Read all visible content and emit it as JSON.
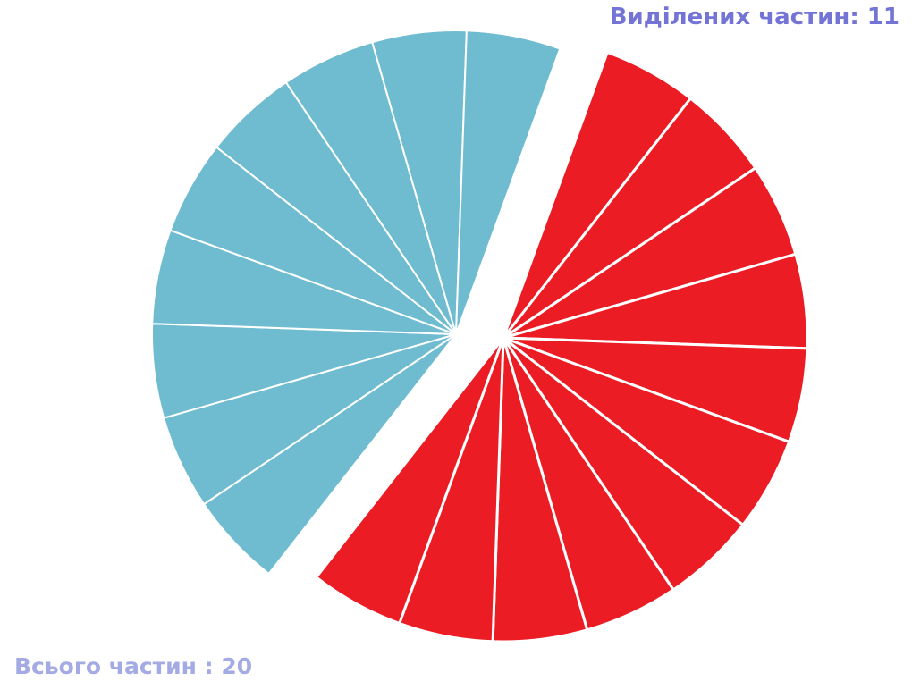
{
  "labels": {
    "selected_text": "Виділених частин: 11",
    "total_text": "Всього частин : 20"
  },
  "colors": {
    "selected_label": "#7474d6",
    "total_label": "#a4aae4",
    "selected_fill": "#ec1c24",
    "unselected_fill": "#6fbcd1",
    "separator": "#ffffff"
  },
  "chart_data": {
    "type": "pie",
    "total_parts": 20,
    "selected_parts": 11,
    "unselected_parts": 9,
    "selected_exploded": true
  }
}
